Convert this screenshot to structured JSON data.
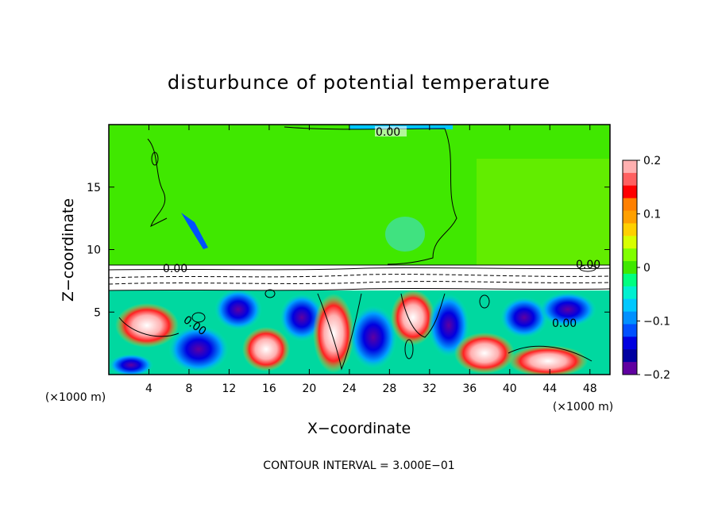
{
  "chart_data": {
    "type": "heatmap",
    "title": "disturbunce of potential temperature",
    "xlabel": "X−coordinate",
    "ylabel": "Z−coordinate",
    "x_unit_left": "(×1000 m)",
    "x_unit_right": "(×1000 m)",
    "xlim": [
      0,
      50
    ],
    "ylim": [
      0,
      20
    ],
    "x_ticks": [
      "4",
      "8",
      "12",
      "16",
      "20",
      "24",
      "28",
      "32",
      "36",
      "40",
      "44",
      "48"
    ],
    "x_tick_values": [
      4,
      8,
      12,
      16,
      20,
      24,
      28,
      32,
      36,
      40,
      44,
      48
    ],
    "y_ticks": [
      "5",
      "10",
      "15"
    ],
    "y_tick_values": [
      5,
      10,
      15
    ],
    "colorbar": {
      "vmin": -0.2,
      "vmax": 0.2,
      "tick_labels": [
        "0.2",
        "0.1",
        "0",
        "−0.1",
        "−0.2"
      ],
      "tick_values": [
        0.2,
        0.1,
        0,
        -0.1,
        -0.2
      ],
      "colors": [
        "#ffb0b0",
        "#ff6060",
        "#ff0000",
        "#ff8000",
        "#ffa000",
        "#ffd000",
        "#d8ff00",
        "#80ff00",
        "#40e800",
        "#00ff80",
        "#00f0d0",
        "#00c8ff",
        "#0090ff",
        "#0050ff",
        "#0000e0",
        "#0000a0",
        "#6000a0"
      ]
    },
    "contour_labels": [
      "0.00",
      "0.00",
      "0.00",
      "0.00",
      "0.00"
    ],
    "contour_interval": "CONTOUR INTERVAL = 3.000E−01"
  }
}
